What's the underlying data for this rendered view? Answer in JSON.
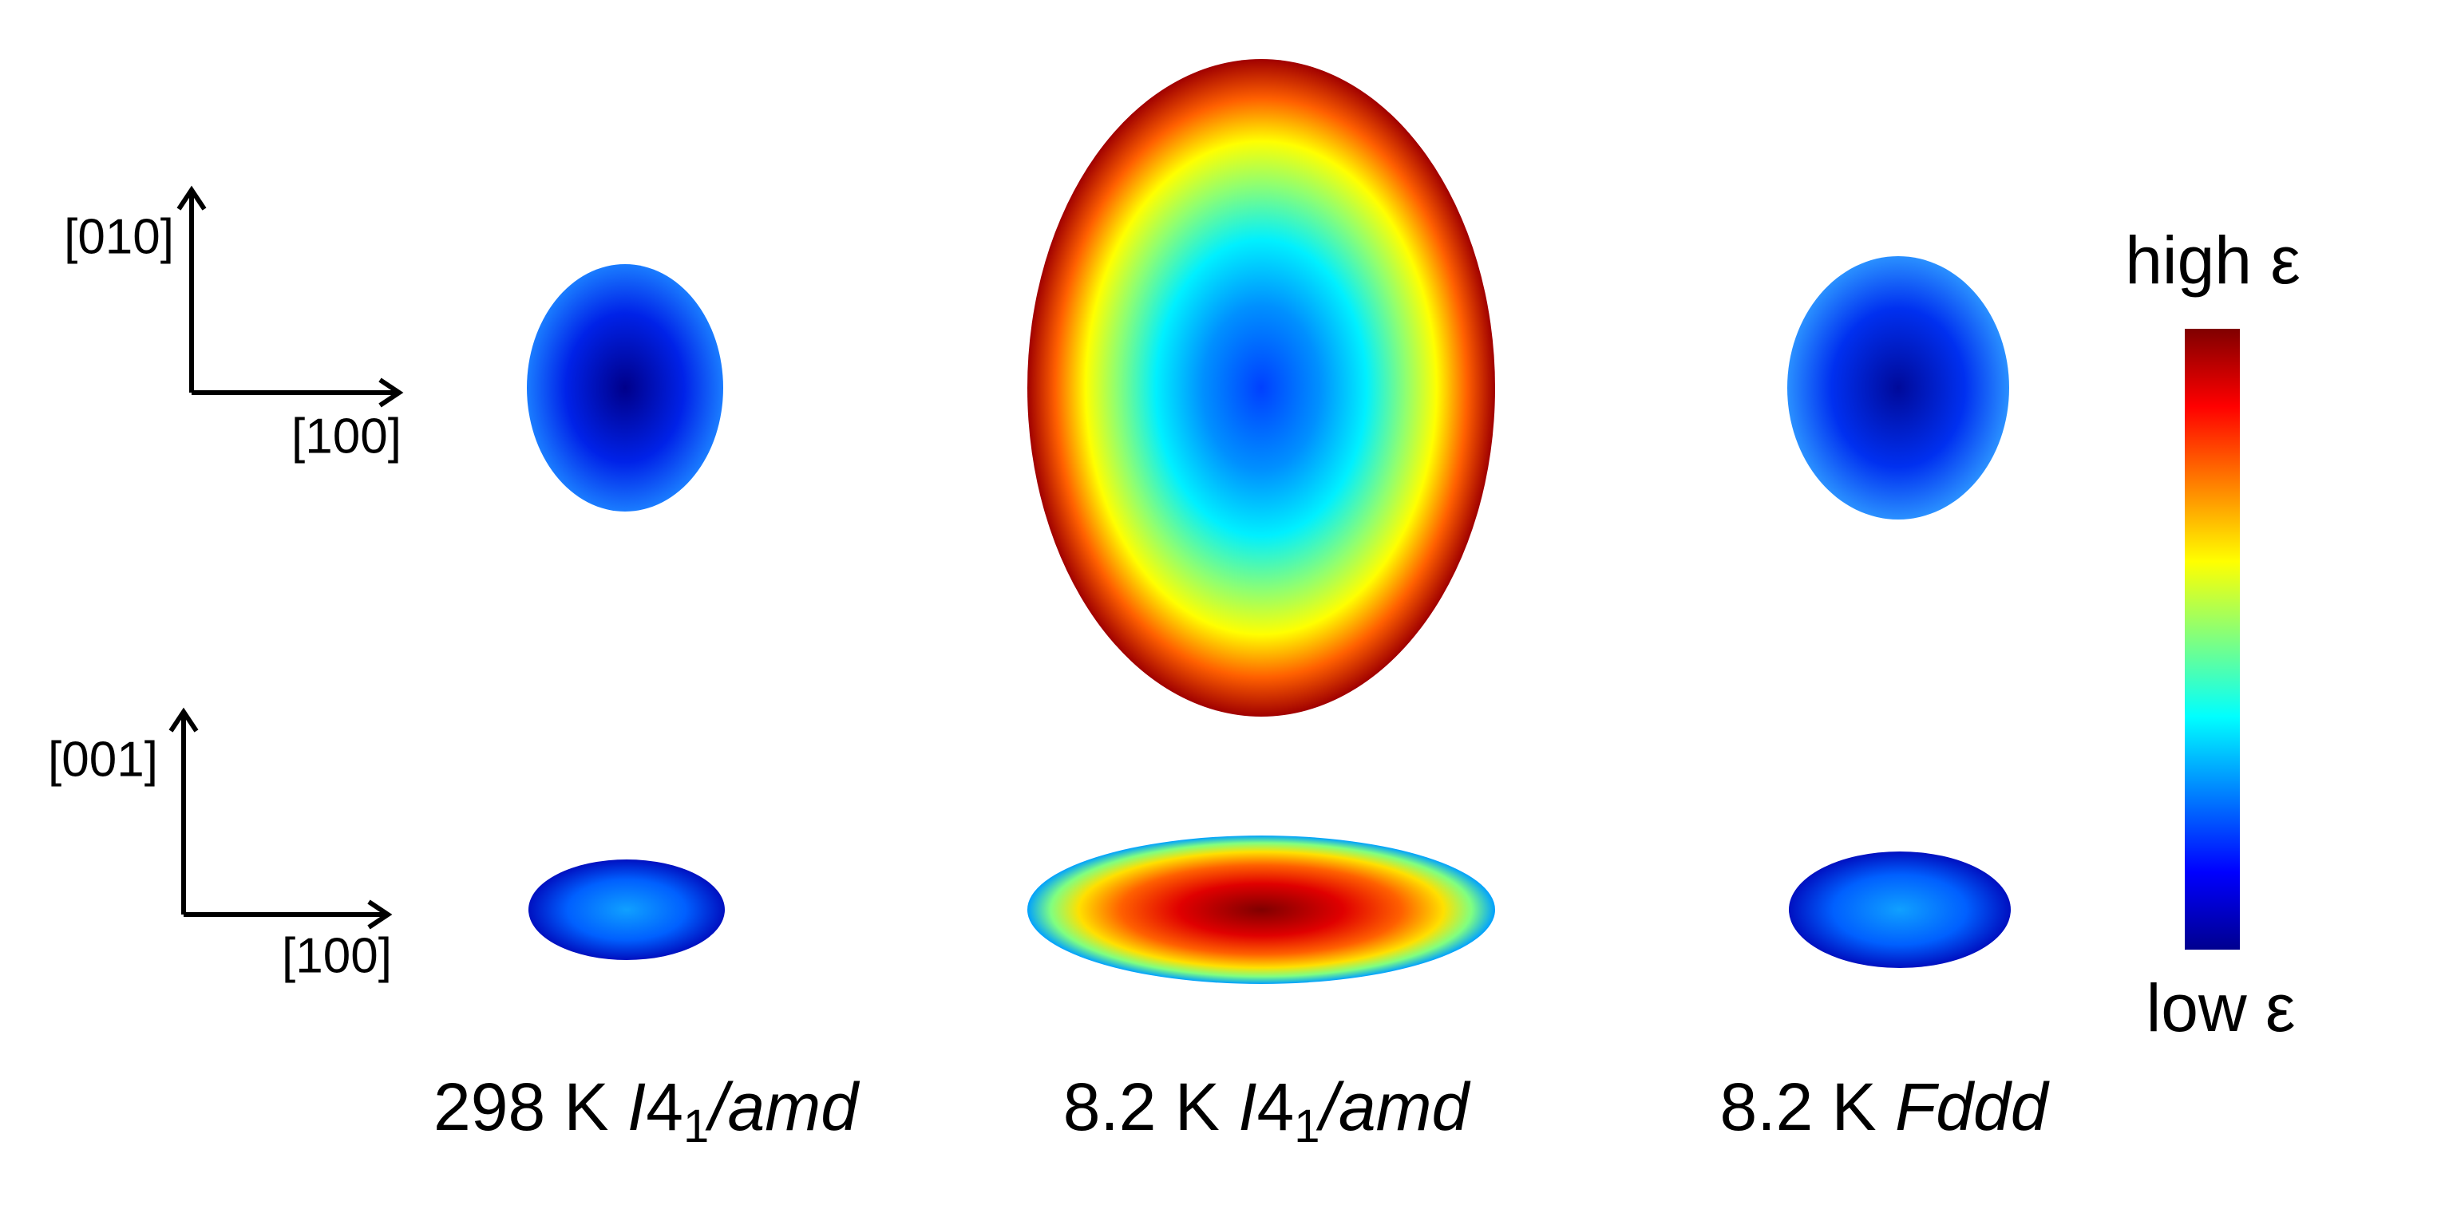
{
  "axes": [
    {
      "vertical": "[010]",
      "horizontal": "[100]"
    },
    {
      "vertical": "[001]",
      "horizontal": "[100]"
    }
  ],
  "colorbar": {
    "high": "high ε",
    "low": "low ε"
  },
  "labels": [
    {
      "temperature": "298 K ",
      "symbol": "I",
      "number": "4",
      "subscript": "1",
      "rest": "/amd"
    },
    {
      "temperature": "8.2 K ",
      "symbol": "I",
      "number": "4",
      "subscript": "1",
      "rest": "/amd"
    },
    {
      "temperature": "8.2 K ",
      "symbol": "Fddd"
    }
  ]
}
